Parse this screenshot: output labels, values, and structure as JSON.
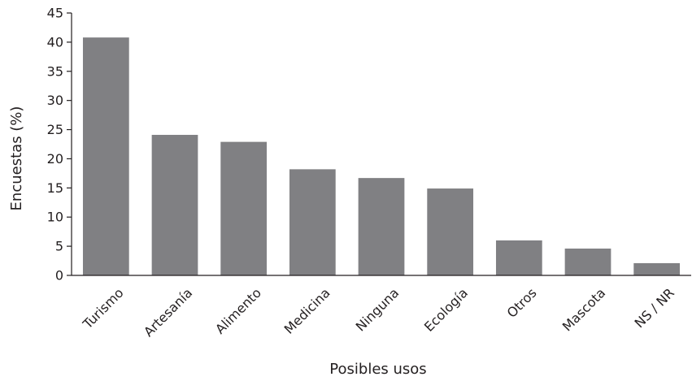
{
  "chart_data": {
    "type": "bar",
    "title": "",
    "xlabel": "Posibles usos",
    "ylabel": "Encuestas (%)",
    "categories": [
      "Turismo",
      "Artesanía",
      "Alimento",
      "Medicina",
      "Ninguna",
      "Ecología",
      "Otros",
      "Mascota",
      "NS / NR"
    ],
    "values": [
      40.8,
      24.1,
      22.9,
      18.2,
      16.7,
      14.9,
      6.0,
      4.6,
      2.1
    ],
    "ylim": [
      0,
      45
    ],
    "yticks": [
      0,
      5,
      10,
      15,
      20,
      25,
      30,
      35,
      40,
      45
    ],
    "grid": false,
    "bar_color": "#808083",
    "axis_color": "#231f20"
  }
}
